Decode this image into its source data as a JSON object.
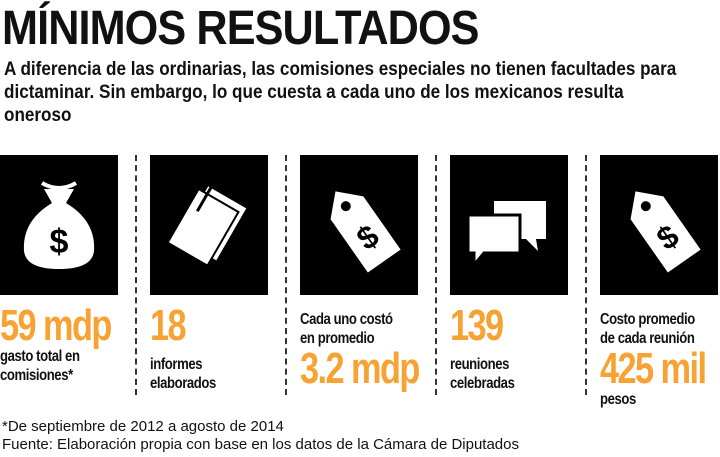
{
  "title": "MÍNIMOS RESULTADOS",
  "subtitle": "A diferencia de las ordinarias, las comisiones especiales no tienen facultades para dictaminar. Sin embargo, lo que cuesta a cada uno de los mexicanos resulta oneroso",
  "accent": "#f7a233",
  "stats": [
    {
      "icon": "money-bag-icon",
      "value": "59 mdp",
      "label_lines": [
        "gasto total en",
        "comisiones*"
      ]
    },
    {
      "icon": "documents-icon",
      "value": "18",
      "label_lines": [
        "informes",
        "elaborados"
      ]
    },
    {
      "icon": "price-tag-icon",
      "pre_lines": [
        "Cada uno costó",
        "en promedio"
      ],
      "value": "3.2 mdp"
    },
    {
      "icon": "speech-bubbles-icon",
      "value": "139",
      "label_lines": [
        "reuniones",
        "celebradas"
      ]
    },
    {
      "icon": "price-tag-icon",
      "pre_lines": [
        "Costo promedio",
        "de cada reunión"
      ],
      "value": "425 mil",
      "label_lines": [
        "pesos"
      ]
    }
  ],
  "footnote": "*De septiembre de 2012 a agosto de 2014",
  "source": "Fuente: Elaboración propia con base en los datos de la Cámara de Diputados"
}
